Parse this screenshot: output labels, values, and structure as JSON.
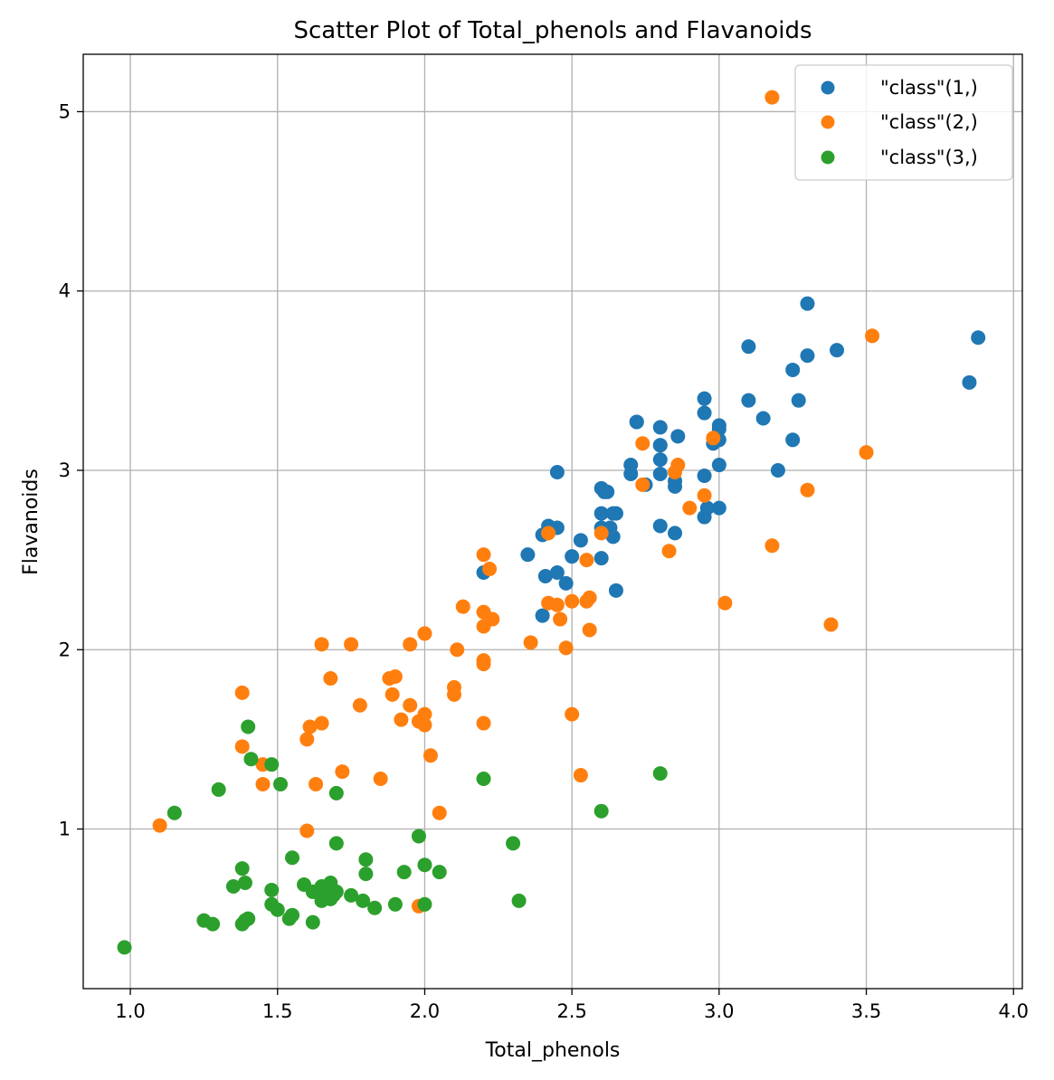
{
  "chart_data": {
    "type": "scatter",
    "title": "Scatter Plot of Total_phenols and Flavanoids",
    "xlabel": "Total_phenols",
    "ylabel": "Flavanoids",
    "xlim": [
      0.84,
      4.03
    ],
    "ylim": [
      0.11,
      5.32
    ],
    "xticks": [
      1.0,
      1.5,
      2.0,
      2.5,
      3.0,
      3.5,
      4.0
    ],
    "xtick_labels": [
      "1.0",
      "1.5",
      "2.0",
      "2.5",
      "3.0",
      "3.5",
      "4.0"
    ],
    "yticks": [
      1,
      2,
      3,
      4,
      5
    ],
    "ytick_labels": [
      "1",
      "2",
      "3",
      "4",
      "5"
    ],
    "grid": true,
    "legend_position": "top-right",
    "series": [
      {
        "name": "\"class\"(1,)",
        "color": "#1f77b4",
        "points": [
          [
            2.8,
            3.06
          ],
          [
            2.65,
            2.76
          ],
          [
            2.8,
            3.24
          ],
          [
            3.85,
            3.49
          ],
          [
            2.8,
            2.69
          ],
          [
            3.27,
            3.39
          ],
          [
            2.5,
            2.52
          ],
          [
            2.6,
            2.51
          ],
          [
            2.8,
            2.98
          ],
          [
            2.98,
            3.15
          ],
          [
            2.95,
            3.32
          ],
          [
            2.2,
            2.43
          ],
          [
            2.6,
            2.76
          ],
          [
            3.1,
            3.69
          ],
          [
            3.3,
            3.64
          ],
          [
            2.85,
            2.91
          ],
          [
            2.8,
            3.14
          ],
          [
            2.95,
            3.4
          ],
          [
            3.3,
            3.93
          ],
          [
            2.7,
            3.03
          ],
          [
            3.0,
            3.17
          ],
          [
            2.41,
            2.41
          ],
          [
            2.61,
            2.88
          ],
          [
            2.48,
            2.37
          ],
          [
            2.53,
            2.61
          ],
          [
            2.63,
            2.68
          ],
          [
            2.85,
            2.94
          ],
          [
            2.4,
            2.19
          ],
          [
            2.95,
            2.97
          ],
          [
            2.65,
            2.33
          ],
          [
            3.0,
            3.25
          ],
          [
            2.86,
            3.19
          ],
          [
            2.42,
            2.69
          ],
          [
            2.95,
            2.74
          ],
          [
            2.35,
            2.53
          ],
          [
            2.7,
            2.98
          ],
          [
            2.6,
            2.9
          ],
          [
            2.45,
            2.99
          ],
          [
            3.0,
            3.23
          ],
          [
            3.15,
            3.29
          ],
          [
            2.45,
            2.68
          ],
          [
            3.25,
            3.56
          ],
          [
            2.64,
            2.63
          ],
          [
            3.0,
            3.03
          ],
          [
            2.85,
            2.65
          ],
          [
            3.1,
            3.39
          ],
          [
            2.72,
            3.27
          ],
          [
            3.88,
            3.74
          ],
          [
            3.2,
            3.0
          ],
          [
            3.0,
            2.79
          ],
          [
            2.4,
            2.64
          ],
          [
            2.45,
            2.43
          ],
          [
            2.64,
            2.76
          ],
          [
            2.6,
            2.68
          ],
          [
            2.72,
            3.27
          ],
          [
            2.8,
            3.14
          ],
          [
            2.75,
            2.92
          ],
          [
            3.4,
            3.67
          ],
          [
            2.62,
            2.88
          ],
          [
            3.25,
            3.17
          ],
          [
            2.96,
            2.79
          ]
        ]
      },
      {
        "name": "\"class\"(2,)",
        "color": "#ff7f0e",
        "points": [
          [
            1.1,
            1.02
          ],
          [
            1.38,
            1.76
          ],
          [
            1.38,
            1.46
          ],
          [
            1.45,
            1.36
          ],
          [
            1.45,
            1.25
          ],
          [
            1.6,
            1.5
          ],
          [
            1.6,
            0.99
          ],
          [
            1.61,
            1.57
          ],
          [
            1.63,
            1.25
          ],
          [
            1.65,
            1.59
          ],
          [
            1.65,
            2.03
          ],
          [
            1.68,
            1.84
          ],
          [
            1.72,
            1.32
          ],
          [
            1.75,
            2.03
          ],
          [
            1.78,
            1.69
          ],
          [
            1.85,
            1.28
          ],
          [
            1.88,
            1.84
          ],
          [
            1.89,
            1.75
          ],
          [
            1.9,
            1.85
          ],
          [
            1.92,
            1.61
          ],
          [
            1.95,
            2.03
          ],
          [
            1.95,
            1.69
          ],
          [
            1.98,
            1.6
          ],
          [
            1.98,
            0.57
          ],
          [
            2.0,
            2.09
          ],
          [
            2.0,
            1.64
          ],
          [
            2.0,
            1.58
          ],
          [
            2.02,
            1.41
          ],
          [
            2.05,
            1.09
          ],
          [
            2.1,
            1.79
          ],
          [
            2.1,
            1.75
          ],
          [
            2.11,
            2.0
          ],
          [
            2.13,
            2.24
          ],
          [
            2.2,
            2.53
          ],
          [
            2.2,
            2.21
          ],
          [
            2.2,
            2.13
          ],
          [
            2.2,
            1.94
          ],
          [
            2.2,
            1.92
          ],
          [
            2.2,
            1.59
          ],
          [
            2.22,
            2.45
          ],
          [
            2.23,
            2.17
          ],
          [
            2.36,
            2.04
          ],
          [
            2.42,
            2.65
          ],
          [
            2.42,
            2.26
          ],
          [
            2.45,
            2.25
          ],
          [
            2.46,
            2.17
          ],
          [
            2.48,
            2.01
          ],
          [
            2.5,
            2.27
          ],
          [
            2.5,
            1.64
          ],
          [
            2.53,
            1.3
          ],
          [
            2.55,
            2.5
          ],
          [
            2.55,
            2.27
          ],
          [
            2.56,
            2.29
          ],
          [
            2.56,
            2.11
          ],
          [
            2.6,
            2.65
          ],
          [
            2.74,
            3.15
          ],
          [
            2.74,
            2.92
          ],
          [
            2.83,
            2.55
          ],
          [
            2.85,
            2.99
          ],
          [
            2.86,
            3.03
          ],
          [
            2.9,
            2.79
          ],
          [
            2.95,
            2.86
          ],
          [
            2.98,
            3.18
          ],
          [
            3.02,
            2.26
          ],
          [
            3.18,
            5.08
          ],
          [
            3.18,
            2.58
          ],
          [
            3.3,
            2.89
          ],
          [
            3.38,
            2.14
          ],
          [
            3.5,
            3.1
          ],
          [
            3.52,
            3.75
          ]
        ]
      },
      {
        "name": "\"class\"(3,)",
        "color": "#2ca02c",
        "points": [
          [
            0.98,
            0.34
          ],
          [
            1.15,
            1.09
          ],
          [
            1.25,
            0.49
          ],
          [
            1.28,
            0.47
          ],
          [
            1.3,
            1.22
          ],
          [
            1.35,
            0.68
          ],
          [
            1.38,
            0.78
          ],
          [
            1.38,
            0.47
          ],
          [
            1.39,
            0.7
          ],
          [
            1.39,
            0.49
          ],
          [
            1.4,
            1.57
          ],
          [
            1.4,
            0.5
          ],
          [
            1.41,
            1.39
          ],
          [
            1.48,
            1.36
          ],
          [
            1.48,
            0.66
          ],
          [
            1.48,
            0.58
          ],
          [
            1.5,
            0.55
          ],
          [
            1.51,
            1.25
          ],
          [
            1.54,
            0.5
          ],
          [
            1.55,
            0.84
          ],
          [
            1.55,
            0.52
          ],
          [
            1.59,
            0.69
          ],
          [
            1.62,
            0.65
          ],
          [
            1.62,
            0.48
          ],
          [
            1.65,
            0.68
          ],
          [
            1.65,
            0.63
          ],
          [
            1.65,
            0.6
          ],
          [
            1.68,
            0.7
          ],
          [
            1.68,
            0.65
          ],
          [
            1.68,
            0.61
          ],
          [
            1.69,
            0.63
          ],
          [
            1.7,
            1.2
          ],
          [
            1.7,
            0.92
          ],
          [
            1.7,
            0.65
          ],
          [
            1.75,
            0.63
          ],
          [
            1.79,
            0.6
          ],
          [
            1.8,
            0.83
          ],
          [
            1.8,
            0.75
          ],
          [
            1.83,
            0.56
          ],
          [
            1.9,
            0.58
          ],
          [
            1.93,
            0.76
          ],
          [
            1.98,
            0.96
          ],
          [
            2.0,
            0.8
          ],
          [
            2.0,
            0.58
          ],
          [
            2.05,
            0.76
          ],
          [
            2.2,
            1.28
          ],
          [
            2.3,
            0.92
          ],
          [
            2.32,
            0.6
          ],
          [
            2.6,
            1.1
          ],
          [
            2.8,
            1.31
          ]
        ]
      }
    ]
  }
}
